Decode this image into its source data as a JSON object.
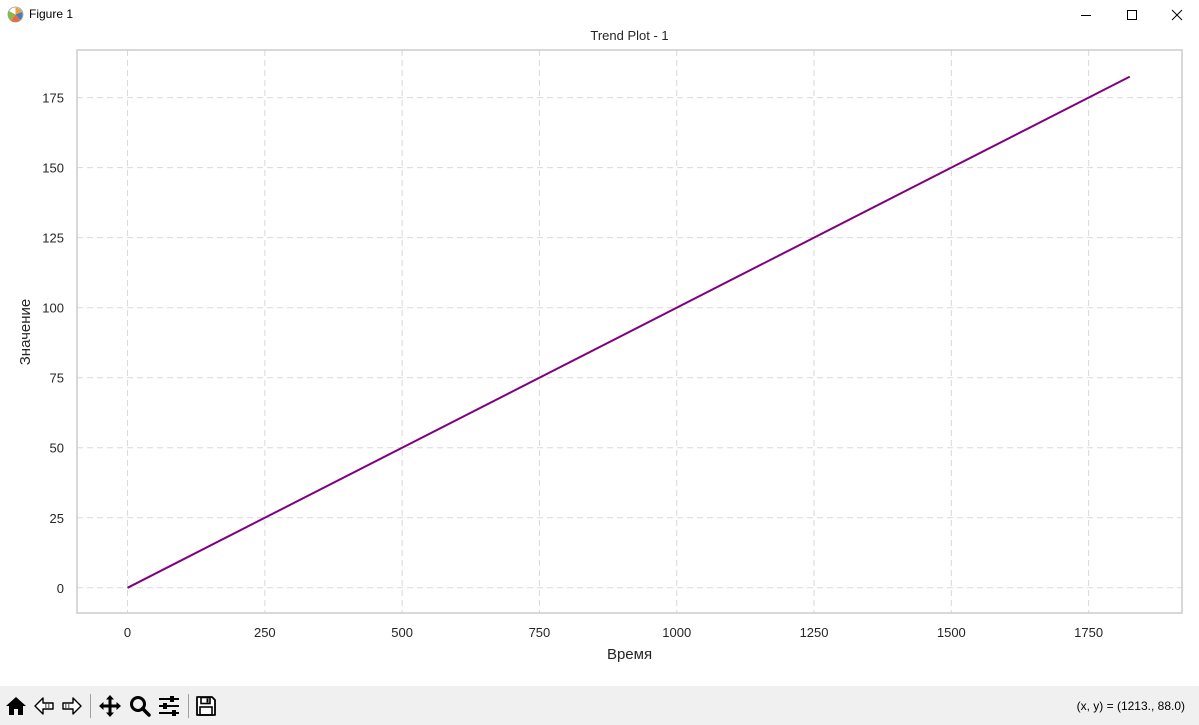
{
  "window": {
    "title": "Figure 1",
    "buttons": {
      "minimize": "minimize-icon",
      "maximize": "maximize-icon",
      "close": "close-icon"
    }
  },
  "toolbar": {
    "icons": [
      "home-icon",
      "back-icon",
      "forward-icon",
      "pan-icon",
      "zoom-icon",
      "configure-subplots-icon",
      "save-icon"
    ],
    "coords_text": "(x, y) = (1213., 88.0)"
  },
  "colors": {
    "line": "#800080",
    "grid": "#d9d9d9",
    "spine": "#cccccc",
    "toolbar_bg": "#f0f0f0"
  },
  "chart_data": {
    "type": "line",
    "title": "Trend Plot - 1",
    "xlabel": "Время",
    "ylabel": "Значение",
    "xlim": [
      -92,
      1920
    ],
    "ylim": [
      -9,
      192
    ],
    "xticks": [
      0,
      250,
      500,
      750,
      1000,
      1250,
      1500,
      1750
    ],
    "yticks": [
      0,
      25,
      50,
      75,
      100,
      125,
      150,
      175
    ],
    "grid": true,
    "grid_style": "dashed",
    "series": [
      {
        "x": [
          0,
          1825
        ],
        "y": [
          0,
          182.5
        ],
        "color": "#800080"
      }
    ]
  }
}
